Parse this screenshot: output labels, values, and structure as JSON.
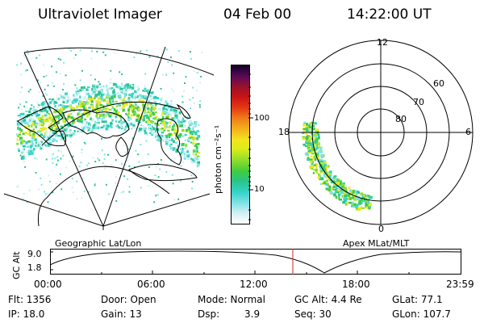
{
  "header": {
    "instrument": "Ultraviolet Imager",
    "date": "04 Feb 00",
    "time": "14:22:00 UT"
  },
  "colorbar": {
    "unit_label": "photon cm⁻²s⁻¹",
    "ticks": [
      "100",
      "10"
    ],
    "colors": [
      "#ffffff",
      "#cfeff2",
      "#7fe3e6",
      "#35d3c8",
      "#28c48a",
      "#3fcc3f",
      "#8fdc2a",
      "#d8ec1c",
      "#f4e41c",
      "#f4b01c",
      "#f07818",
      "#e53a14",
      "#c81414",
      "#961030",
      "#5a0a56",
      "#120028"
    ]
  },
  "left_map": {
    "caption": "Geographic Lat/Lon"
  },
  "polar_plot": {
    "caption": "Apex MLat/MLT",
    "mlt_labels": {
      "top": "12",
      "right": "6",
      "bottom": "0",
      "left": "18"
    },
    "lat_labels": [
      "60",
      "70",
      "80"
    ]
  },
  "altitude_plot": {
    "ylabel": "GC Alt",
    "yticks": [
      "9.0",
      "1.8"
    ],
    "xticks": [
      "00:00",
      "06:00",
      "12:00",
      "18:00",
      "23:59"
    ]
  },
  "footer": {
    "flt": "Flt: 1356",
    "ip": "IP: 18.0",
    "door": "Door: Open",
    "gain": "Gain: 13",
    "mode": "Mode: Normal",
    "dsp_label": "Dsp:",
    "dsp_value": "3.9",
    "gc_alt": "GC Alt: 4.4 Re",
    "seq": "Seq: 30",
    "glat": "GLat:  77.1",
    "glon": "GLon: 107.7"
  }
}
